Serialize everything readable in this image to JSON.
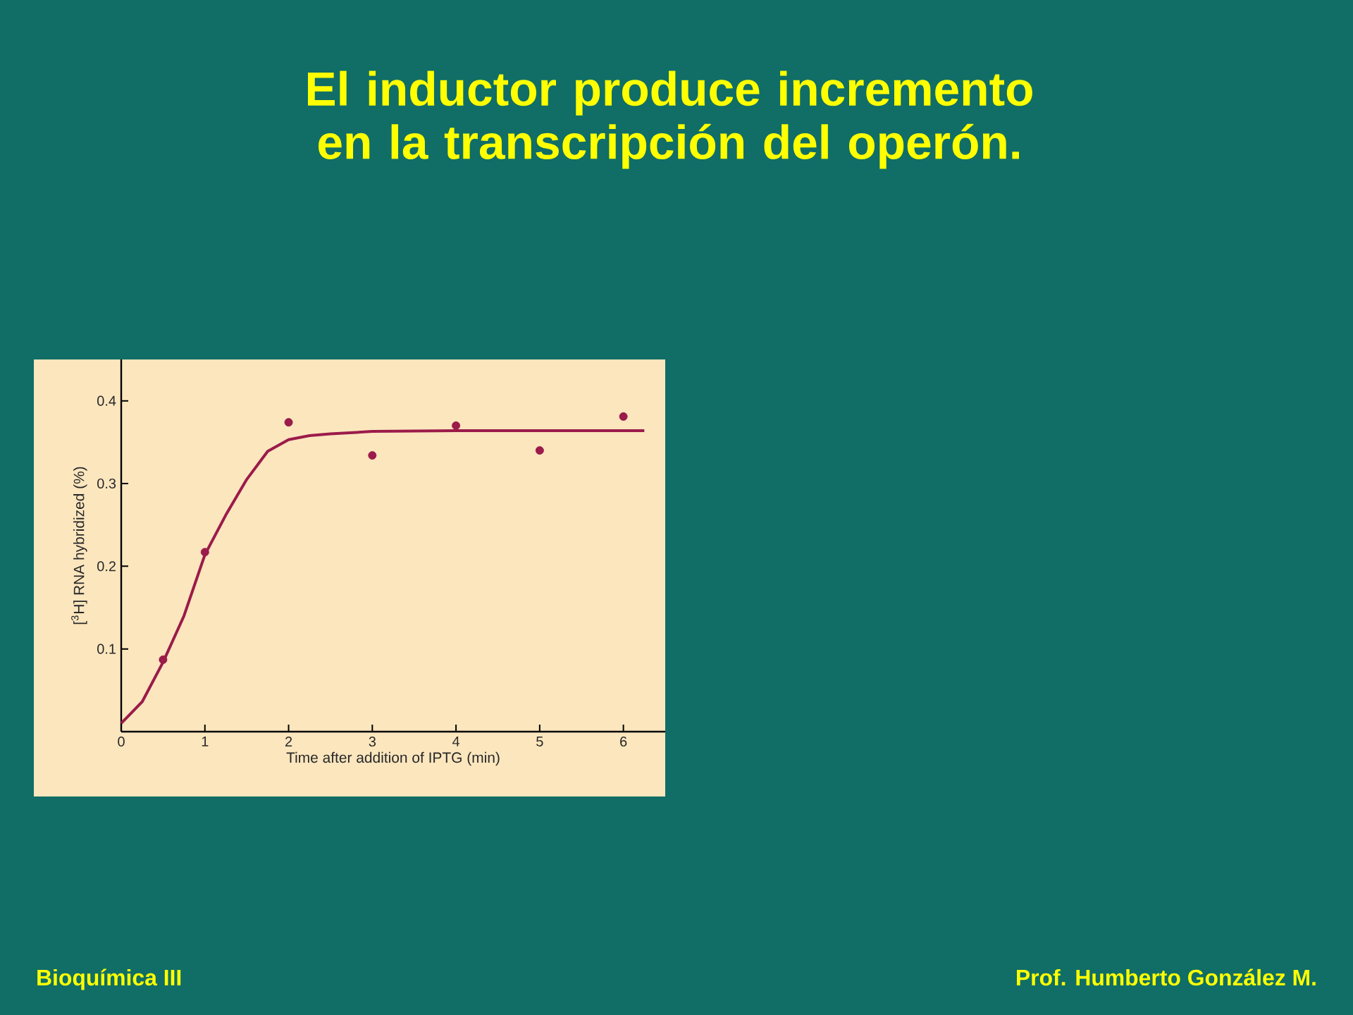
{
  "chart_data": {
    "type": "scatter",
    "title": "El inductor produce incremento en la transcripción del operón.",
    "xlabel": "Time after addition of IPTG (min)",
    "ylabel": "[$^{3}$H] RNA hybridized (%)",
    "xlim": [
      0,
      6.5
    ],
    "ylim": [
      0,
      0.45
    ],
    "xticks": [
      0,
      1,
      2,
      3,
      4,
      5,
      6
    ],
    "yticks": [
      0.1,
      0.2,
      0.3,
      0.4
    ],
    "series": [
      {
        "type": "line",
        "color": "#9b1b4a",
        "marker": "none",
        "x": [
          0,
          0.25,
          0.5,
          0.75,
          1,
          1.25,
          1.5,
          1.75,
          2,
          2.25,
          2.5,
          3,
          4,
          5,
          6.25
        ],
        "values": [
          0.01,
          0.036,
          0.084,
          0.14,
          0.214,
          0.262,
          0.305,
          0.339,
          0.353,
          0.358,
          0.36,
          0.363,
          0.364,
          0.364,
          0.364
        ]
      },
      {
        "color": "#9b1b4a",
        "marker": "circle",
        "x": [
          0.5,
          1,
          2,
          3,
          4,
          5,
          6
        ],
        "values": [
          0.087,
          0.217,
          0.374,
          0.334,
          0.37,
          0.34,
          0.381
        ]
      }
    ],
    "annotations": [
      "Bioquímica III",
      "Prof. Humberto González M."
    ]
  }
}
